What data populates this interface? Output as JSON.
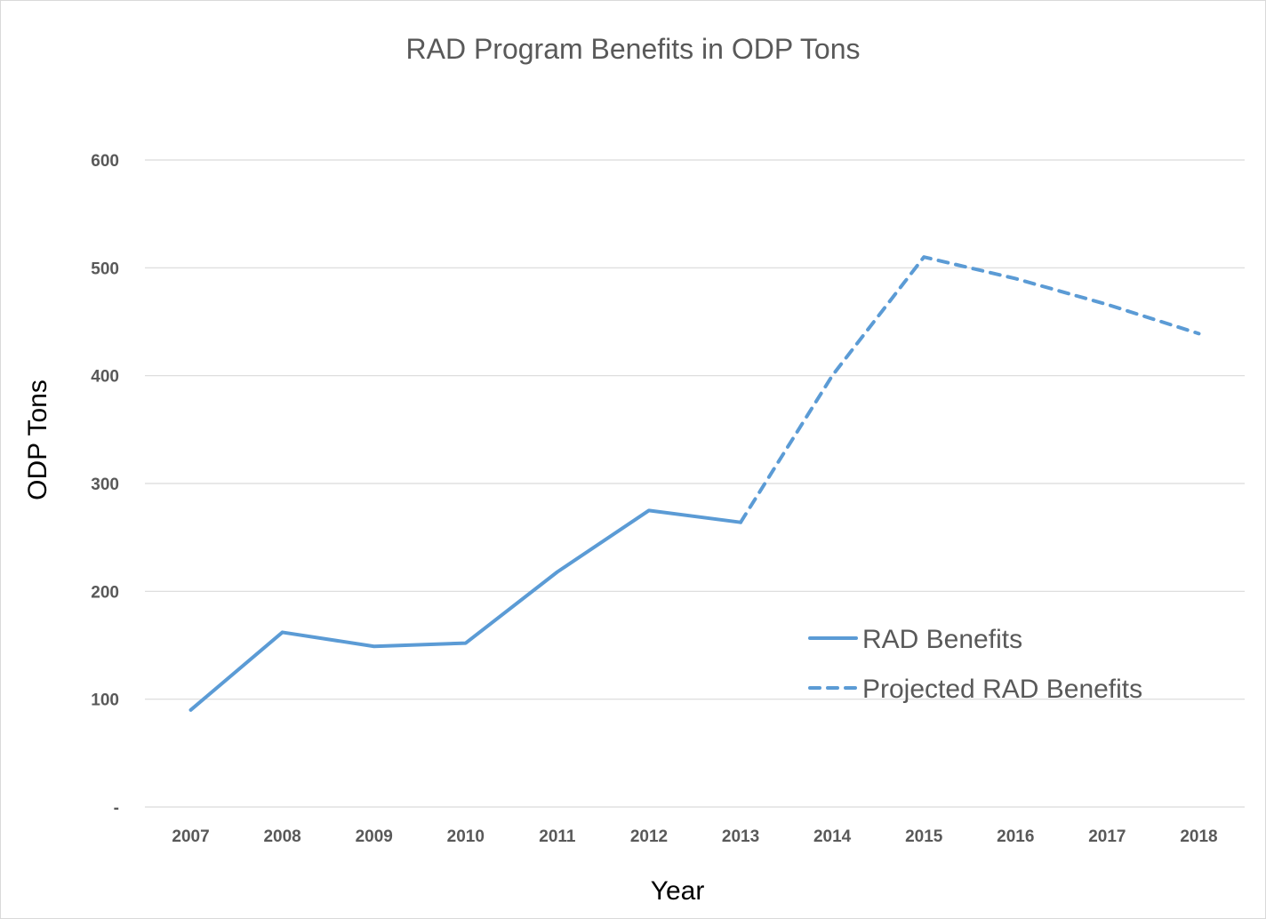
{
  "chart_data": {
    "type": "line",
    "title": "RAD Program Benefits in ODP Tons",
    "xlabel": "Year",
    "ylabel": "ODP Tons",
    "categories": [
      "2007",
      "2008",
      "2009",
      "2010",
      "2011",
      "2012",
      "2013",
      "2014",
      "2015",
      "2016",
      "2017",
      "2018"
    ],
    "yticks": [
      {
        "value": 0,
        "label": "-"
      },
      {
        "value": 100,
        "label": "100"
      },
      {
        "value": 200,
        "label": "200"
      },
      {
        "value": 300,
        "label": "300"
      },
      {
        "value": 400,
        "label": "400"
      },
      {
        "value": 500,
        "label": "500"
      },
      {
        "value": 600,
        "label": "600"
      }
    ],
    "ylim": [
      0,
      600
    ],
    "grid": true,
    "legend_position": "right-middle",
    "series": [
      {
        "name": "RAD Benefits",
        "style": "solid",
        "color": "#5B9BD5",
        "values": [
          90,
          162,
          149,
          152,
          218,
          275,
          264,
          null,
          null,
          null,
          null,
          null
        ]
      },
      {
        "name": "Projected RAD Benefits",
        "style": "dashed",
        "color": "#5B9BD5",
        "values": [
          null,
          null,
          null,
          null,
          null,
          null,
          264,
          400,
          510,
          490,
          466,
          439
        ]
      }
    ]
  }
}
